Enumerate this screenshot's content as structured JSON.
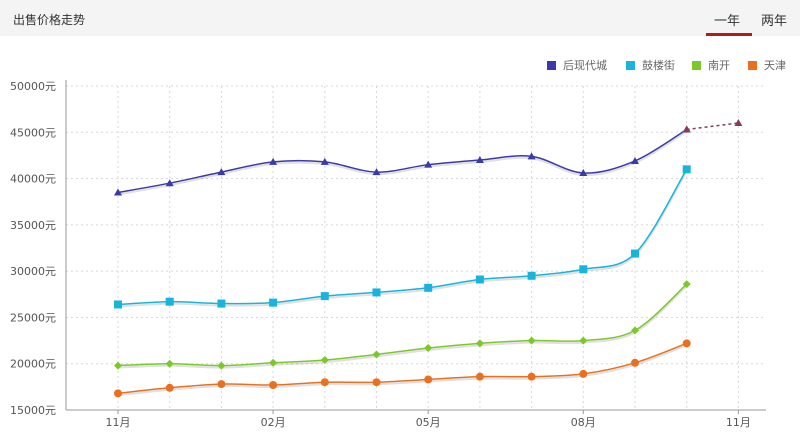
{
  "header": {
    "title": "出售价格走势",
    "tabs": [
      {
        "label": "一年",
        "active": true
      },
      {
        "label": "两年",
        "active": false
      }
    ],
    "active_color": "#b01c1c"
  },
  "chart_data": {
    "type": "line",
    "title": "",
    "xlabel": "",
    "ylabel": "",
    "ylim": [
      15000,
      50000
    ],
    "grid": true,
    "legend_position": "top-right",
    "y_ticks": [
      "15000元",
      "20000元",
      "25000元",
      "30000元",
      "35000元",
      "40000元",
      "45000元",
      "50000元"
    ],
    "x_ticks": [
      "11月",
      "02月",
      "05月",
      "08月",
      "11月"
    ],
    "series": [
      {
        "name": "后现代城",
        "color": "#3b3aa8",
        "marker": "triangle",
        "values": [
          38500,
          39500,
          40700,
          41800,
          41800,
          40700,
          41500,
          42000,
          42400,
          40600,
          41900,
          45300
        ],
        "forecast": [
          45300,
          46000
        ]
      },
      {
        "name": "鼓楼街",
        "color": "#1ab3dc",
        "marker": "square",
        "values": [
          26400,
          26700,
          26500,
          26600,
          27300,
          27700,
          28200,
          29100,
          29500,
          30200,
          31900,
          41000
        ]
      },
      {
        "name": "南开",
        "color": "#7cc72b",
        "marker": "diamond",
        "values": [
          19800,
          20000,
          19800,
          20100,
          20400,
          21000,
          21700,
          22200,
          22500,
          22500,
          23600,
          28600
        ]
      },
      {
        "name": "天津",
        "color": "#e87020",
        "marker": "circle",
        "values": [
          16800,
          17400,
          17800,
          17700,
          18000,
          18000,
          18300,
          18600,
          18600,
          18900,
          20100,
          22200
        ]
      }
    ]
  }
}
